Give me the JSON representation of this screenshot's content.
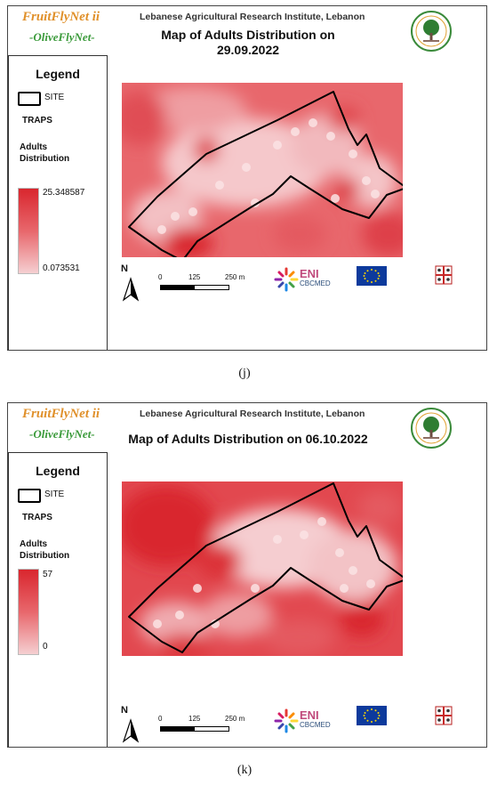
{
  "panels": [
    {
      "brand_line1": "FruitFlyNet ii",
      "brand_line2": "-OliveFlyNet-",
      "institute": "Lebanese Agricultural Research Institute, Lebanon",
      "title_line1": "Map of Adults Distribution on",
      "title_line2": "29.09.2022",
      "legend": {
        "title": "Legend",
        "site_label": "SITE",
        "traps_label": "TRAPS",
        "adults_label_1": "Adults",
        "adults_label_2": "Distribution",
        "max": "25.348587",
        "min": "0.073531"
      },
      "scalebar": {
        "t0": "0",
        "t1": "125",
        "t2": "250 m"
      },
      "north": "N",
      "eni": {
        "name": "ENI",
        "program": "CBCMED"
      },
      "caption": "(j)"
    },
    {
      "brand_line1": "FruitFlyNet ii",
      "brand_line2": "-OliveFlyNet-",
      "institute": "Lebanese Agricultural Research Institute, Lebanon",
      "title_line1": "Map of Adults Distribution on 06.10.2022",
      "title_line2": "",
      "legend": {
        "title": "Legend",
        "site_label": "SITE",
        "traps_label": "TRAPS",
        "adults_label_1": "Adults",
        "adults_label_2": "Distribution",
        "max": "57",
        "min": "0"
      },
      "scalebar": {
        "t0": "0",
        "t1": "125",
        "t2": "250 m"
      },
      "north": "N",
      "eni": {
        "name": "ENI",
        "program": "CBCMED"
      },
      "caption": "(k)"
    }
  ],
  "colors": {
    "ramp_high": "#d9262e",
    "ramp_low": "#f5cfd1",
    "site_outline": "#000000",
    "brand_orange": "#e0902a",
    "brand_green": "#3a9a3a"
  }
}
